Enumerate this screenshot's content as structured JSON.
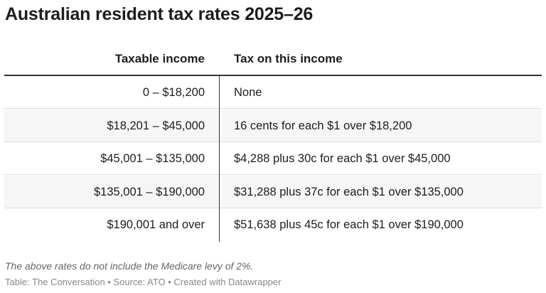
{
  "header": {
    "title": "Australian resident tax rates 2025–26"
  },
  "table": {
    "columns": [
      "Taxable income",
      "Tax on this income"
    ],
    "rows": [
      [
        "0 – $18,200",
        "None"
      ],
      [
        "$18,201 – $45,000",
        "16 cents for each $1 over $18,200"
      ],
      [
        "$45,001 – $135,000",
        "$4,288 plus 30c for each $1 over $45,000"
      ],
      [
        "$135,001 – $190,000",
        "$31,288 plus 37c for each $1 over $135,000"
      ],
      [
        "$190,001 and over",
        "$51,638 plus 45c for each $1 over $190,000"
      ]
    ]
  },
  "footer": {
    "note": "The above rates do not include the Medicare levy of 2%.",
    "source": "Table: The Conversation • Source: ATO • Created with Datawrapper"
  }
}
